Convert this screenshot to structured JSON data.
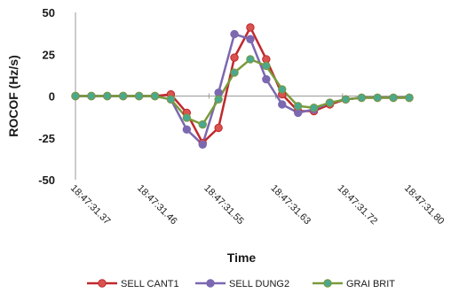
{
  "chart_data": {
    "type": "line",
    "xlabel": "Time",
    "ylabel": "ROCOF (Hz/s)",
    "ylim": [
      -50,
      50
    ],
    "yticks": [
      50,
      25,
      0,
      -25,
      -50
    ],
    "xtick_labels": [
      "18:47:31.37",
      "18:47:31.46",
      "18:47:31.55",
      "18:47:31.63",
      "18:47:31.72",
      "18:47:31.80"
    ],
    "x_index_range": [
      0,
      21
    ],
    "grid": false,
    "legend_position": "bottom",
    "series": [
      {
        "name": "SELL CANT1",
        "color": "#c0282d",
        "marker_color": "#d9534f",
        "values": [
          0,
          0,
          0,
          0,
          0,
          0,
          1,
          -10,
          -28,
          -19,
          23,
          41,
          22,
          1,
          -9,
          -9,
          -5,
          -2,
          -1,
          -1,
          -1,
          -1
        ]
      },
      {
        "name": "SELL DUNG2",
        "color": "#7b68b0",
        "marker_color": "#7b68b0",
        "values": [
          0,
          0,
          0,
          0,
          0,
          0,
          -2,
          -20,
          -29,
          2,
          37,
          34,
          10,
          -5,
          -10,
          -8,
          -4,
          -2,
          -1,
          -1,
          -1,
          -1
        ]
      },
      {
        "name": "GRAI BRIT",
        "color": "#7a9a3a",
        "marker_color": "#4aa88e",
        "values": [
          0,
          0,
          0,
          0,
          0,
          0,
          -2,
          -13,
          -17,
          -2,
          14,
          22,
          18,
          4,
          -6,
          -7,
          -4,
          -2,
          -1,
          -1,
          -1,
          -1
        ]
      }
    ]
  }
}
